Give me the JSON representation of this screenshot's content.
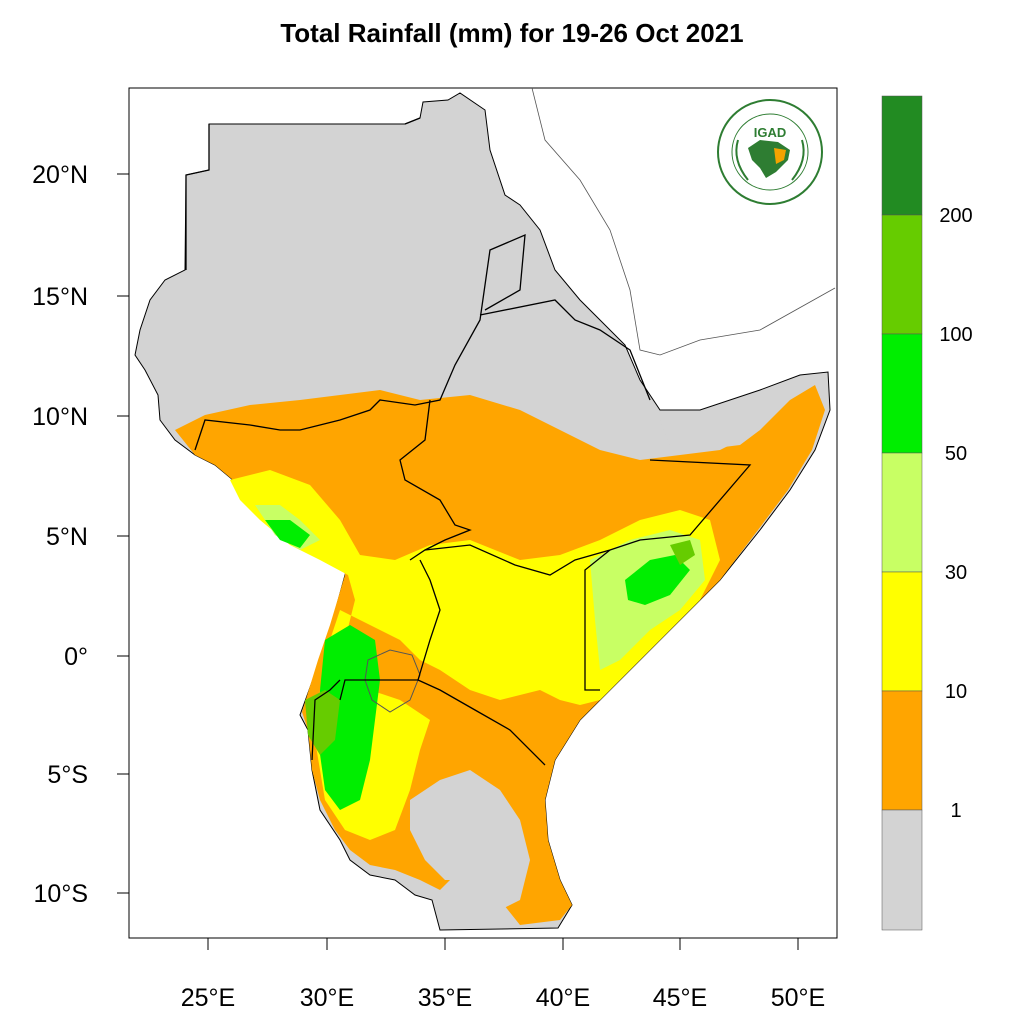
{
  "title": "Total Rainfall (mm) for 19-26 Oct 2021",
  "logo": {
    "name": "IGAD",
    "ring_text": "INTERGOVERNMENTAL AUTHORITY ON DEVELOPMENT · AUTORITE INTERGOUVERNEMENTALE POUR LE DEVELOPPEMENT"
  },
  "axes": {
    "lon_ticks": [
      "25°E",
      "30°E",
      "35°E",
      "40°E",
      "45°E",
      "50°E"
    ],
    "lat_ticks": [
      "20°N",
      "15°N",
      "10°N",
      "5°N",
      "0°",
      "5°S",
      "10°S"
    ]
  },
  "colorbar": {
    "labels": [
      "200",
      "100",
      "50",
      "30",
      "10",
      "1"
    ],
    "colors": [
      "#228b22",
      "#66cc00",
      "#00ee00",
      "#c8ff64",
      "#ffff00",
      "#ffa500",
      "#d3d3d3"
    ]
  },
  "colors": {
    "dry": "#d3d3d3",
    "light": "#ffa500",
    "moderate": "#ffff00",
    "heavy": "#c8ff64",
    "very_heavy": "#00ee00",
    "extreme": "#66cc00",
    "max": "#228b22"
  }
}
